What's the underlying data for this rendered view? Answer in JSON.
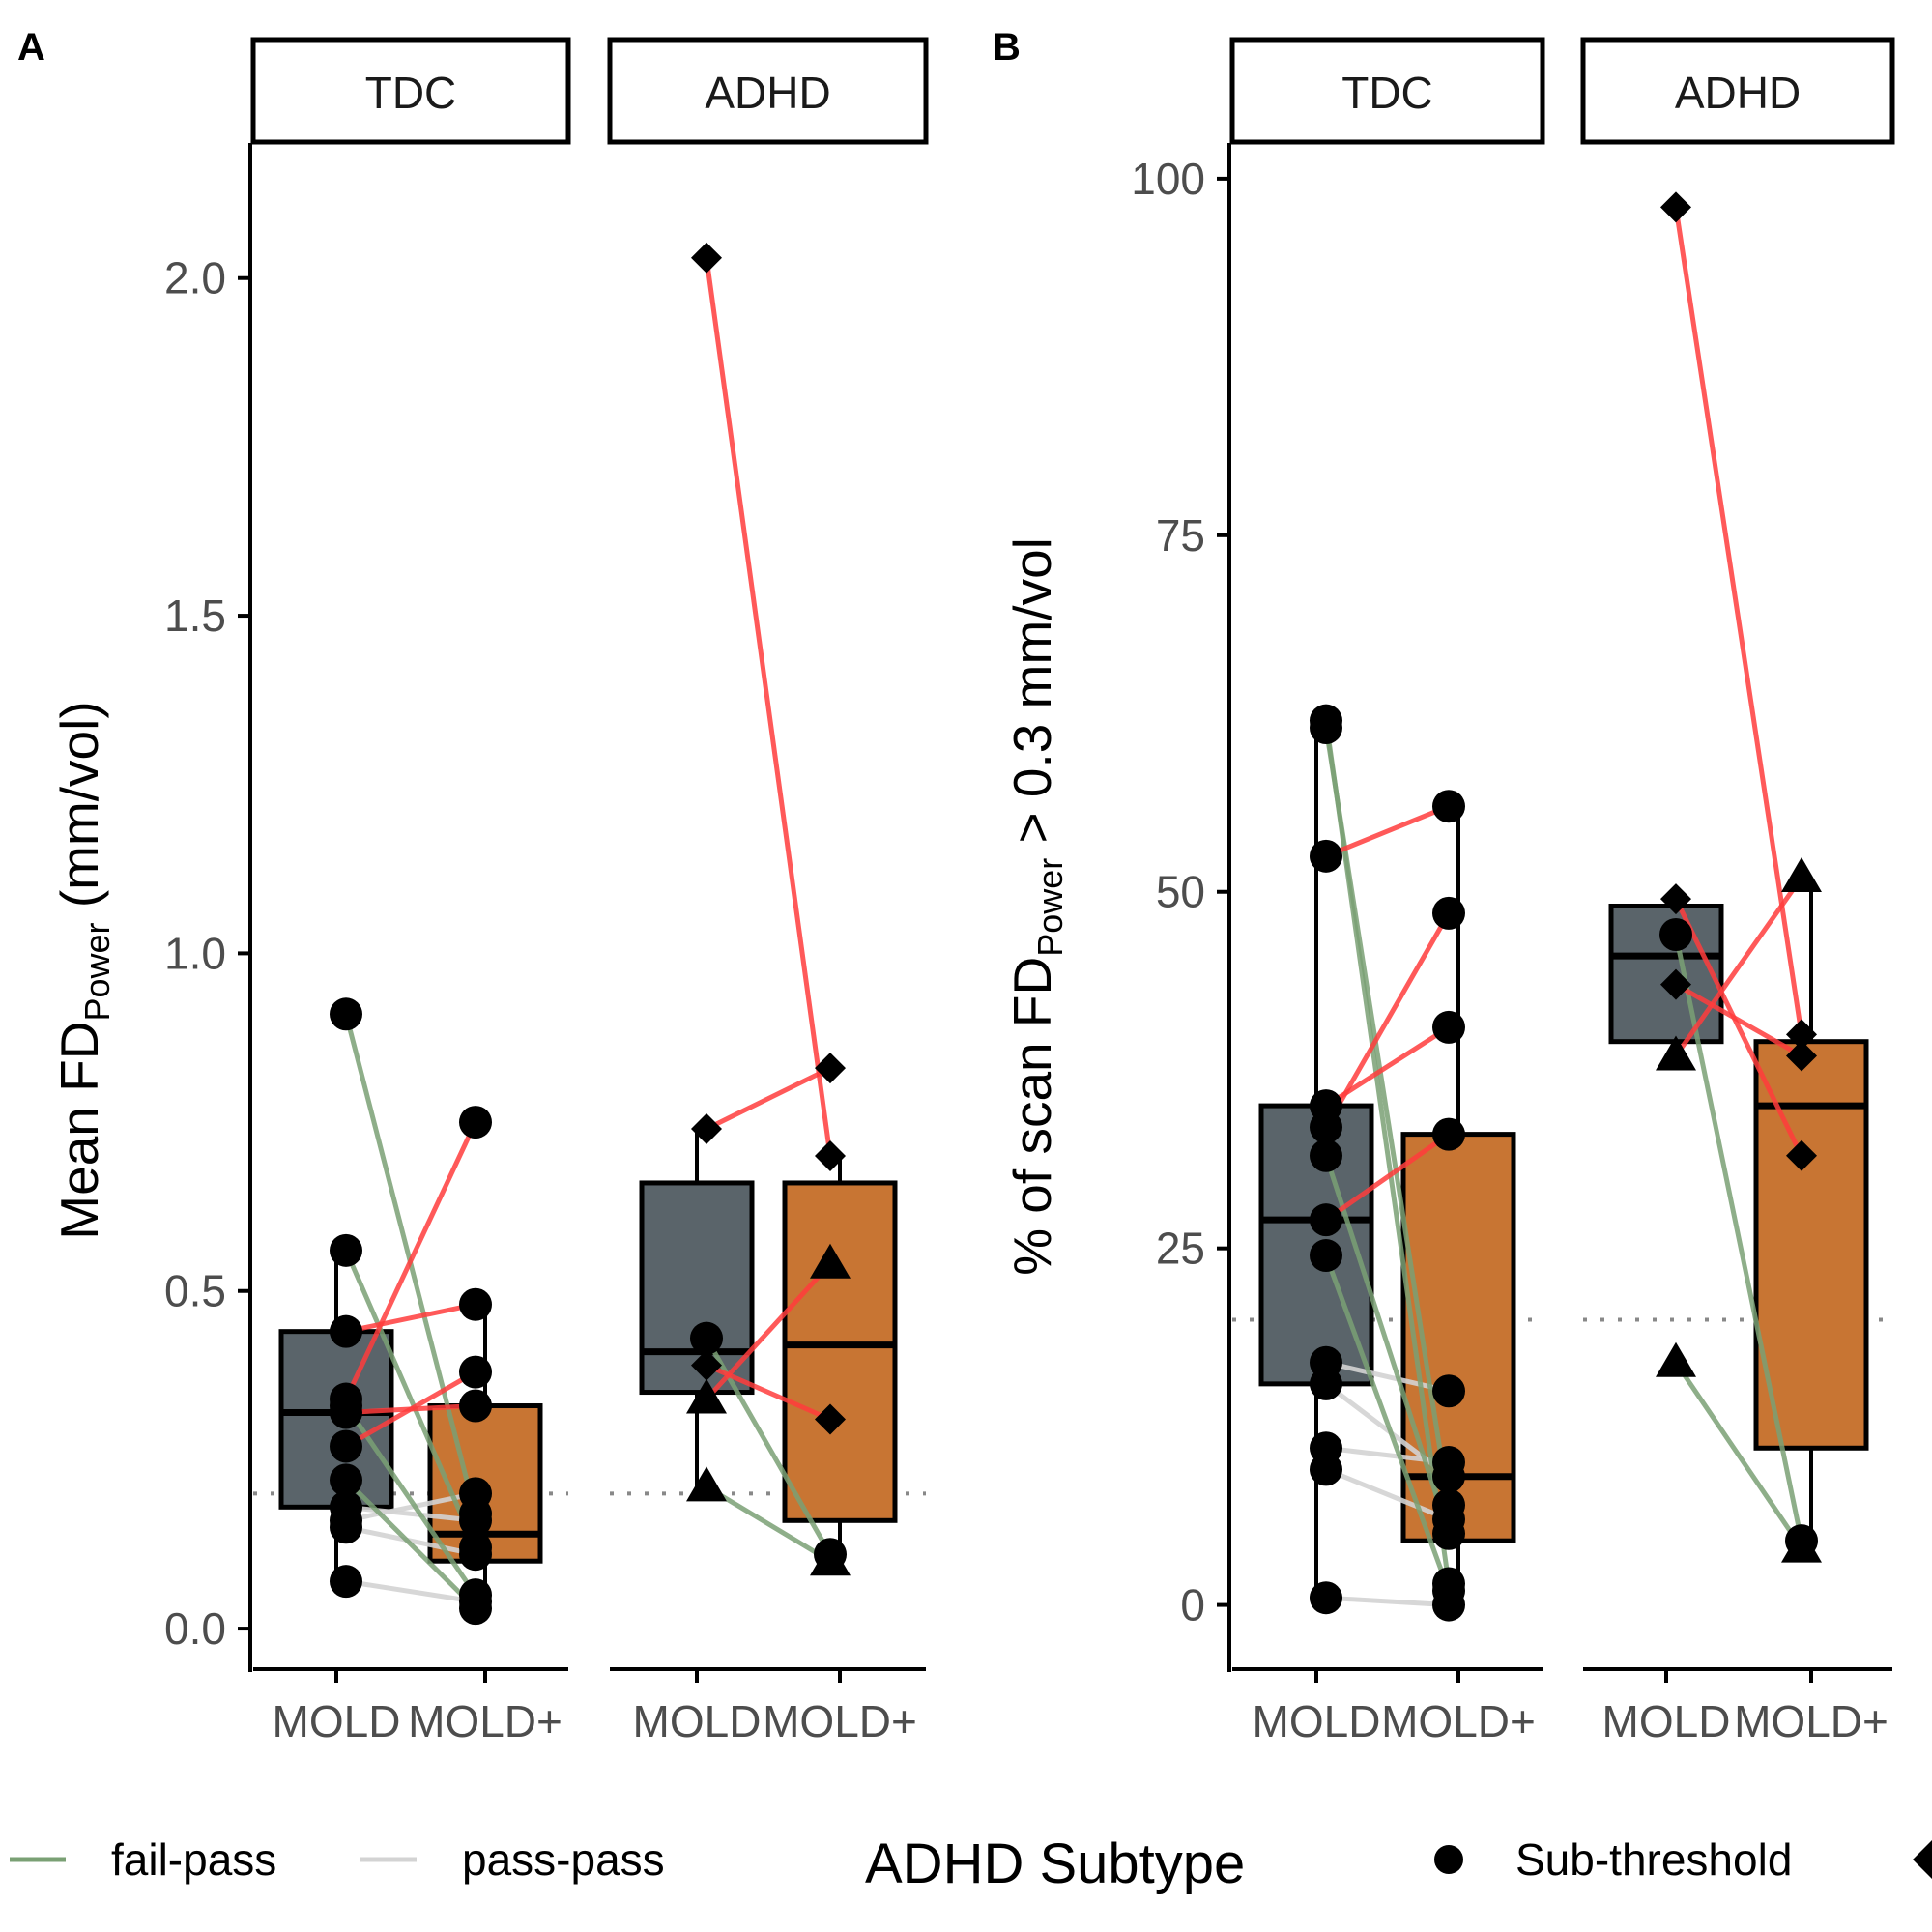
{
  "colors": {
    "fail_pass": "#7aa074",
    "pass_pass": "#d3d3d3",
    "pass_fail": "#ff3c3c",
    "box_mold": "#5a646a",
    "box_moldplus": "#c87533",
    "threshold_line": "#888888"
  },
  "legend": {
    "items": [
      {
        "label": "fail-pass",
        "key": "fail-pass"
      },
      {
        "label": "pass-pass",
        "key": "pass-pass"
      }
    ],
    "subtype_title": "ADHD Subtype",
    "subtype_items": [
      {
        "label": "Sub-threshold",
        "shape": "circle"
      },
      {
        "label": "",
        "shape": "diamond"
      }
    ]
  },
  "chart_data": [
    {
      "panel_label": "A",
      "type": "box",
      "ylabel_main": "Mean FD",
      "ylabel_sub": "Power",
      "ylabel_tail": " (mm/vol)",
      "ylim": [
        -0.06,
        2.2
      ],
      "yticks": [
        0,
        0.5,
        1.0,
        1.5,
        2.0
      ],
      "ytick_labels": [
        "0.0",
        "0.5",
        "1.0",
        "1.5",
        "2.0"
      ],
      "threshold": 0.2,
      "categories": [
        "MOLD",
        "MOLD+"
      ],
      "facets": [
        {
          "strip": "TDC",
          "boxes": [
            {
              "category": "MOLD",
              "min": 0.07,
              "q1": 0.18,
              "median": 0.32,
              "q3": 0.44,
              "max": 0.56
            },
            {
              "category": "MOLD+",
              "min": 0.04,
              "q1": 0.1,
              "median": 0.14,
              "q3": 0.33,
              "max": 0.48
            }
          ],
          "pairs": [
            {
              "mold": 0.91,
              "moldplus": 0.17,
              "shape": "circle",
              "status": "fail-pass"
            },
            {
              "mold": 0.56,
              "moldplus": 0.12,
              "shape": "circle",
              "status": "fail-pass"
            },
            {
              "mold": 0.44,
              "moldplus": 0.48,
              "shape": "circle",
              "status": "pass-fail"
            },
            {
              "mold": 0.32,
              "moldplus": 0.33,
              "shape": "circle",
              "status": "pass-fail"
            },
            {
              "mold": 0.27,
              "moldplus": 0.38,
              "shape": "circle",
              "status": "pass-fail"
            },
            {
              "mold": 0.33,
              "moldplus": 0.05,
              "shape": "circle",
              "status": "fail-pass"
            },
            {
              "mold": 0.22,
              "moldplus": 0.03,
              "shape": "circle",
              "status": "fail-pass"
            },
            {
              "mold": 0.34,
              "moldplus": 0.75,
              "shape": "circle",
              "status": "pass-fail"
            },
            {
              "mold": 0.18,
              "moldplus": 0.16,
              "shape": "circle",
              "status": "pass-pass"
            },
            {
              "mold": 0.16,
              "moldplus": 0.2,
              "shape": "circle",
              "status": "pass-pass"
            },
            {
              "mold": 0.15,
              "moldplus": 0.11,
              "shape": "circle",
              "status": "pass-pass"
            },
            {
              "mold": 0.07,
              "moldplus": 0.04,
              "shape": "circle",
              "status": "pass-pass"
            }
          ]
        },
        {
          "strip": "ADHD",
          "boxes": [
            {
              "category": "MOLD",
              "min": 0.21,
              "q1": 0.35,
              "median": 0.41,
              "q3": 0.66,
              "max": 0.74
            },
            {
              "category": "MOLD+",
              "min": 0.1,
              "q1": 0.16,
              "median": 0.42,
              "q3": 0.66,
              "max": 0.7
            }
          ],
          "pairs": [
            {
              "mold": 2.03,
              "moldplus": 0.7,
              "shape": "diamond",
              "status": "pass-fail"
            },
            {
              "mold": 0.74,
              "moldplus": 0.83,
              "shape": "diamond",
              "status": "pass-fail"
            },
            {
              "mold": 0.39,
              "moldplus": 0.31,
              "shape": "diamond",
              "status": "pass-fail"
            },
            {
              "mold": 0.34,
              "moldplus": 0.54,
              "shape": "triangle",
              "status": "pass-fail"
            },
            {
              "mold": 0.43,
              "moldplus": 0.11,
              "shape": "circle",
              "status": "fail-pass"
            },
            {
              "mold": 0.21,
              "moldplus": 0.1,
              "shape": "triangle",
              "status": "fail-pass"
            }
          ]
        }
      ]
    },
    {
      "panel_label": "B",
      "type": "box",
      "ylabel_main": "% of scan FD",
      "ylabel_sub": "Power",
      "ylabel_tail": "  > 0.3 mm/vol",
      "ylim": [
        -4.5,
        102.5
      ],
      "yticks": [
        0,
        25,
        50,
        75,
        100
      ],
      "ytick_labels": [
        "0",
        "25",
        "50",
        "75",
        "100"
      ],
      "threshold": 20,
      "categories": [
        "MOLD",
        "MOLD+"
      ],
      "facets": [
        {
          "strip": "TDC",
          "boxes": [
            {
              "category": "MOLD",
              "min": 0.5,
              "q1": 15.5,
              "median": 27,
              "q3": 35,
              "max": 62
            },
            {
              "category": "MOLD+",
              "min": 0,
              "q1": 4.5,
              "median": 9,
              "q3": 33,
              "max": 56
            }
          ],
          "pairs": [
            {
              "mold": 62,
              "moldplus": 1.5,
              "shape": "circle",
              "status": "fail-pass"
            },
            {
              "mold": 61.5,
              "moldplus": 7,
              "shape": "circle",
              "status": "fail-pass"
            },
            {
              "mold": 52.5,
              "moldplus": 56,
              "shape": "circle",
              "status": "pass-fail"
            },
            {
              "mold": 35,
              "moldplus": 40.5,
              "shape": "circle",
              "status": "pass-fail"
            },
            {
              "mold": 33.5,
              "moldplus": 48.5,
              "shape": "circle",
              "status": "pass-fail"
            },
            {
              "mold": 27,
              "moldplus": 33,
              "shape": "circle",
              "status": "pass-fail"
            },
            {
              "mold": 31.5,
              "moldplus": 5,
              "shape": "circle",
              "status": "fail-pass"
            },
            {
              "mold": 24.5,
              "moldplus": 1,
              "shape": "circle",
              "status": "fail-pass"
            },
            {
              "mold": 17,
              "moldplus": 15,
              "shape": "circle",
              "status": "pass-pass"
            },
            {
              "mold": 15.5,
              "moldplus": 9,
              "shape": "circle",
              "status": "pass-pass"
            },
            {
              "mold": 11,
              "moldplus": 10,
              "shape": "circle",
              "status": "pass-pass"
            },
            {
              "mold": 9.5,
              "moldplus": 6,
              "shape": "circle",
              "status": "pass-pass"
            },
            {
              "mold": 0.5,
              "moldplus": 0,
              "shape": "circle",
              "status": "pass-pass"
            }
          ]
        },
        {
          "strip": "ADHD",
          "boxes": [
            {
              "category": "MOLD",
              "min": 39.5,
              "q1": 39.5,
              "median": 45.5,
              "q3": 49,
              "max": 49
            },
            {
              "category": "MOLD+",
              "min": 4,
              "q1": 11,
              "median": 35,
              "q3": 39.5,
              "max": 51
            }
          ],
          "pairs": [
            {
              "mold": 98,
              "moldplus": 40,
              "shape": "diamond",
              "status": "pass-fail"
            },
            {
              "mold": 49.5,
              "moldplus": 31.5,
              "shape": "diamond",
              "status": "pass-fail"
            },
            {
              "mold": 43.5,
              "moldplus": 38.5,
              "shape": "diamond",
              "status": "pass-fail"
            },
            {
              "mold": 38.5,
              "moldplus": 51,
              "shape": "triangle",
              "status": "pass-fail"
            },
            {
              "mold": 47,
              "moldplus": 4.5,
              "shape": "circle",
              "status": "fail-pass"
            },
            {
              "mold": 17,
              "moldplus": 4,
              "shape": "triangle",
              "status": "fail-pass"
            }
          ]
        }
      ]
    }
  ]
}
